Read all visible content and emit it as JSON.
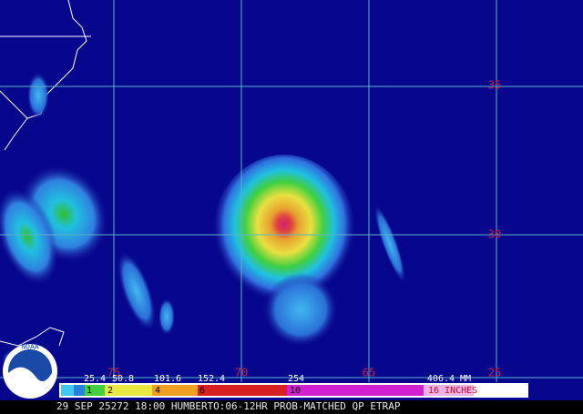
{
  "map": {
    "latitude_labels": [
      "35",
      "30",
      "25"
    ],
    "longitude_labels": [
      "75",
      "70",
      "65"
    ],
    "legend": {
      "mm_labels": [
        "25.4",
        "50.8",
        "101.6",
        "152.4",
        "254",
        "406.4 MM"
      ],
      "inch_labels": [
        "1",
        "2",
        "4",
        "6",
        "10",
        "16 INCHES"
      ]
    },
    "logo": "NOAA",
    "footer": "29 SEP 25272 18:00 HUMBERTO:06-12HR PROB-MATCHED QP ETRAP"
  }
}
